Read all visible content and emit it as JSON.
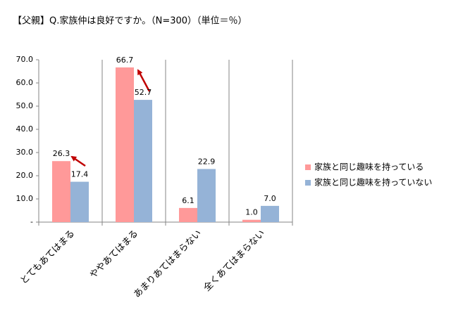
{
  "chart_data": {
    "type": "bar",
    "title": "【父親】Q.家族仲は良好ですか。（N=300）（単位＝％）",
    "categories": [
      "とてもあてはまる",
      "ややあてはまる",
      "あまりあてはまらない",
      "全くあてはまらない"
    ],
    "series": [
      {
        "name": "家族と同じ趣味を持っている",
        "color": "#ff9999",
        "values": [
          26.3,
          66.7,
          6.1,
          1.0
        ],
        "value_labels": [
          "26.3",
          "66.7",
          "6.1",
          "1.0"
        ]
      },
      {
        "name": "家族と同じ趣味を持っていない",
        "color": "#95b3d7",
        "values": [
          17.4,
          52.7,
          22.9,
          7.0
        ],
        "value_labels": [
          "17.4",
          "52.7",
          "22.9",
          "7.0"
        ]
      }
    ],
    "ylim": [
      0,
      70
    ],
    "yticks": [
      {
        "value": 0,
        "label": "-"
      },
      {
        "value": 10,
        "label": "10.0"
      },
      {
        "value": 20,
        "label": "20.0"
      },
      {
        "value": 30,
        "label": "30.0"
      },
      {
        "value": 40,
        "label": "40.0"
      },
      {
        "value": 50,
        "label": "50.0"
      },
      {
        "value": 60,
        "label": "60.0"
      },
      {
        "value": 70,
        "label": "70.0"
      }
    ],
    "grid": false,
    "legend": "right"
  }
}
